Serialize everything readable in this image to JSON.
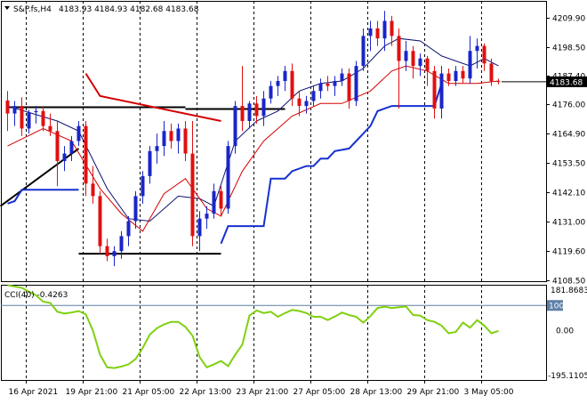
{
  "chart_data": [
    {
      "type": "candlestick",
      "symbol_label": "S&P.fs,H4",
      "ohlc_label": "4183.93 4184.93 4182.68 4183.68",
      "current_price": 4183.68,
      "current_price_label": "4183.68",
      "y_axis": {
        "ylim": [
          4104.0,
          4216.0
        ],
        "ticks": [
          "4209.90",
          "4198.50",
          "4187.40",
          "4176.00",
          "4164.90",
          "4153.50",
          "4142.10",
          "4131.00",
          "4119.60",
          "4108.50"
        ]
      },
      "x_axis": {
        "tick_labels": [
          "16 Apr 2021",
          "19 Apr 21:00",
          "21 Apr 05:00",
          "22 Apr 13:00",
          "23 Apr 21:00",
          "27 Apr 05:00",
          "28 Apr 13:00",
          "29 Apr 21:00",
          "3 May 05:00"
        ],
        "separators": [
          3,
          11,
          19,
          27,
          35,
          43,
          51,
          59,
          67
        ]
      },
      "colors": {
        "bull": "#1a25c8",
        "bear": "#e01010",
        "fast_ma": "#d40000",
        "slow_ma": "#0b1170",
        "trend_line": "#000000",
        "support_line": "#1630d0"
      },
      "candles": [
        [
          4176.2,
          4180.0,
          4164.0,
          4171.0
        ],
        [
          4171.0,
          4176.0,
          4166.0,
          4174.0
        ],
        [
          4174.0,
          4177.5,
          4162.0,
          4165.0
        ],
        [
          4165.0,
          4172.5,
          4163.0,
          4171.5
        ],
        [
          4171.5,
          4174.0,
          4167.0,
          4172.0
        ],
        [
          4172.0,
          4174.0,
          4164.0,
          4166.0
        ],
        [
          4166.0,
          4171.0,
          4162.0,
          4164.0
        ],
        [
          4164.0,
          4168.0,
          4142.0,
          4152.0
        ],
        [
          4152.0,
          4158.0,
          4148.0,
          4155.0
        ],
        [
          4155.0,
          4162.0,
          4152.0,
          4160.0
        ],
        [
          4160.0,
          4168.0,
          4158.0,
          4166.0
        ],
        [
          4166.0,
          4168.0,
          4138.0,
          4143.0
        ],
        [
          4143.0,
          4150.0,
          4135.0,
          4138.0
        ],
        [
          4138.0,
          4140.0,
          4115.0,
          4118.0
        ],
        [
          4118.0,
          4121.0,
          4112.0,
          4114.0
        ],
        [
          4114.0,
          4118.0,
          4110.0,
          4116.0
        ],
        [
          4116.0,
          4124.0,
          4113.0,
          4122.0
        ],
        [
          4122.0,
          4130.0,
          4118.0,
          4128.0
        ],
        [
          4128.0,
          4140.0,
          4125.0,
          4138.0
        ],
        [
          4138.0,
          4148.0,
          4135.0,
          4146.0
        ],
        [
          4146.0,
          4158.0,
          4143.0,
          4156.0
        ],
        [
          4156.0,
          4163.0,
          4151.0,
          4158.0
        ],
        [
          4158.0,
          4168.0,
          4154.0,
          4164.0
        ],
        [
          4164.0,
          4167.0,
          4157.0,
          4160.0
        ],
        [
          4160.0,
          4167.0,
          4155.0,
          4165.0
        ],
        [
          4165.0,
          4168.0,
          4152.0,
          4155.0
        ],
        [
          4155.0,
          4168.0,
          4118.0,
          4122.0
        ],
        [
          4122.0,
          4132.0,
          4116.0,
          4129.0
        ],
        [
          4129.0,
          4134.0,
          4125.0,
          4131.0
        ],
        [
          4131.0,
          4143.0,
          4129.0,
          4140.0
        ],
        [
          4140.0,
          4142.0,
          4130.0,
          4133.0
        ],
        [
          4133.0,
          4160.0,
          4131.0,
          4158.0
        ],
        [
          4158.0,
          4176.0,
          4155.0,
          4174.0
        ],
        [
          4174.0,
          4190.0,
          4164.0,
          4168.0
        ],
        [
          4168.0,
          4176.0,
          4165.0,
          4175.0
        ],
        [
          4175.0,
          4178.0,
          4167.0,
          4170.0
        ],
        [
          4170.0,
          4180.0,
          4166.0,
          4177.0
        ],
        [
          4177.0,
          4184.0,
          4175.0,
          4182.0
        ],
        [
          4182.0,
          4186.0,
          4178.0,
          4184.0
        ],
        [
          4184.0,
          4190.0,
          4180.0,
          4188.0
        ],
        [
          4188.0,
          4191.0,
          4174.0,
          4177.0
        ],
        [
          4177.0,
          4180.0,
          4170.0,
          4174.0
        ],
        [
          4174.0,
          4178.0,
          4171.0,
          4176.0
        ],
        [
          4176.0,
          4182.0,
          4174.0,
          4180.0
        ],
        [
          4180.0,
          4185.0,
          4177.0,
          4183.0
        ],
        [
          4183.0,
          4186.0,
          4180.0,
          4182.0
        ],
        [
          4182.0,
          4186.0,
          4178.0,
          4184.0
        ],
        [
          4184.0,
          4189.0,
          4182.0,
          4187.0
        ],
        [
          4187.0,
          4189.0,
          4173.0,
          4176.0
        ],
        [
          4176.0,
          4192.0,
          4174.0,
          4190.0
        ],
        [
          4190.0,
          4205.0,
          4188.0,
          4202.0
        ],
        [
          4202.0,
          4208.0,
          4196.0,
          4205.0
        ],
        [
          4205.0,
          4208.0,
          4198.0,
          4201.0
        ],
        [
          4201.0,
          4212.0,
          4196.0,
          4208.0
        ],
        [
          4208.0,
          4210.0,
          4198.0,
          4202.0
        ],
        [
          4202.0,
          4205.0,
          4173.0,
          4192.0
        ],
        [
          4192.0,
          4200.0,
          4188.0,
          4196.0
        ],
        [
          4196.0,
          4198.0,
          4185.0,
          4190.0
        ],
        [
          4190.0,
          4195.0,
          4186.0,
          4193.0
        ],
        [
          4193.0,
          4194.0,
          4182.0,
          4188.0
        ],
        [
          4188.0,
          4190.0,
          4169.0,
          4173.0
        ],
        [
          4173.0,
          4190.0,
          4169.0,
          4187.0
        ],
        [
          4187.0,
          4189.0,
          4182.0,
          4184.0
        ],
        [
          4184.0,
          4190.0,
          4182.0,
          4188.0
        ],
        [
          4188.0,
          4190.0,
          4183.0,
          4185.0
        ],
        [
          4185.0,
          4202.0,
          4183.0,
          4196.0
        ],
        [
          4196.0,
          4201.0,
          4189.0,
          4198.0
        ],
        [
          4198.0,
          4199.0,
          4188.0,
          4191.0
        ],
        [
          4191.0,
          4193.0,
          4182.0,
          4183.9
        ],
        [
          4183.93,
          4184.93,
          4182.68,
          4183.68
        ]
      ],
      "moving_averages": [
        {
          "color": "#0b1170",
          "points": [
            [
              0,
              4174
            ],
            [
              7,
              4168
            ],
            [
              10,
              4164
            ],
            [
              14,
              4141
            ],
            [
              17,
              4129
            ],
            [
              20,
              4128
            ],
            [
              24,
              4138
            ],
            [
              27,
              4137
            ],
            [
              29,
              4134
            ],
            [
              32,
              4160
            ],
            [
              35,
              4168
            ],
            [
              38,
              4172
            ],
            [
              41,
              4180
            ],
            [
              44,
              4183
            ],
            [
              47,
              4184
            ],
            [
              50,
              4189
            ],
            [
              53,
              4198
            ],
            [
              55,
              4201
            ],
            [
              58,
              4200
            ],
            [
              61,
              4194
            ],
            [
              65,
              4190
            ],
            [
              67,
              4193
            ],
            [
              69,
              4190
            ]
          ]
        },
        {
          "color": "#d40000",
          "points": [
            [
              0,
              4158
            ],
            [
              5,
              4165
            ],
            [
              9,
              4160
            ],
            [
              13,
              4141
            ],
            [
              16,
              4131
            ],
            [
              19,
              4124
            ],
            [
              22,
              4139
            ],
            [
              25,
              4145
            ],
            [
              28,
              4133
            ],
            [
              30,
              4130
            ],
            [
              33,
              4148
            ],
            [
              36,
              4160
            ],
            [
              40,
              4170
            ],
            [
              44,
              4175
            ],
            [
              47,
              4175
            ],
            [
              51,
              4180
            ],
            [
              54,
              4188
            ],
            [
              56,
              4190
            ],
            [
              59,
              4188
            ],
            [
              62,
              4183
            ],
            [
              66,
              4183
            ],
            [
              69,
              4184
            ]
          ]
        }
      ],
      "trend_lines": [
        {
          "color": "#000000",
          "points": [
            [
              0,
              4173.5
            ],
            [
              25,
              4173.5
            ]
          ]
        },
        {
          "color": "#000000",
          "points": [
            [
              25,
              4172.8
            ],
            [
              39,
              4172.8
            ]
          ]
        },
        {
          "color": "#000000",
          "points": [
            [
              -1,
              4134
            ],
            [
              10,
              4157
            ]
          ]
        },
        {
          "color": "#000000",
          "points": [
            [
              10,
              4115
            ],
            [
              30,
              4115
            ]
          ]
        },
        {
          "color": "#d40000",
          "points": [
            [
              11,
              4187
            ],
            [
              13,
              4178
            ],
            [
              30,
              4168
            ]
          ]
        },
        {
          "color": "#1630d0",
          "points": [
            [
              0,
              4135
            ],
            [
              1,
              4136
            ],
            [
              2,
              4140.5
            ],
            [
              10,
              4140.5
            ]
          ]
        },
        {
          "color": "#1630d0",
          "points": [
            [
              30,
              4119
            ],
            [
              31,
              4126
            ],
            [
              36,
              4126
            ],
            [
              37,
              4145
            ],
            [
              39,
              4145
            ],
            [
              40,
              4148
            ],
            [
              42,
              4150
            ],
            [
              43,
              4150
            ],
            [
              44,
              4153
            ],
            [
              45,
              4153
            ],
            [
              46,
              4156
            ],
            [
              48,
              4157
            ],
            [
              49,
              4160
            ],
            [
              50,
              4163
            ],
            [
              51,
              4166
            ],
            [
              52,
              4172
            ],
            [
              53,
              4173
            ],
            [
              54,
              4174
            ],
            [
              60,
              4174
            ],
            [
              61,
              4183
            ]
          ]
        }
      ]
    },
    {
      "type": "line",
      "indicator_label": "CCI(40) -0.4263",
      "ylim": [
        -195.1105,
        181.8683
      ],
      "level_100_label": "100",
      "top_label": "181.8683",
      "zero_label": "0.00",
      "bottom_label": "-195.1105",
      "color": "#80d010",
      "x": [
        0,
        2,
        4,
        5,
        6,
        7,
        8,
        9,
        10,
        11,
        12,
        13,
        14,
        15,
        16,
        17,
        18,
        19,
        20,
        21,
        22,
        23,
        24,
        25,
        26,
        27,
        28,
        29,
        30,
        31,
        32,
        33,
        34,
        35,
        36,
        37,
        38,
        39,
        40,
        41,
        42,
        43,
        44,
        45,
        46,
        47,
        48,
        49,
        50,
        51,
        52,
        53,
        54,
        55,
        56,
        57,
        58,
        59,
        60,
        61,
        62,
        63,
        64,
        65,
        66,
        67,
        68,
        69
      ],
      "values": [
        180,
        170,
        140,
        115,
        110,
        75,
        68,
        72,
        78,
        65,
        0,
        -95,
        -145,
        -148,
        -142,
        -133,
        -112,
        -68,
        -15,
        10,
        25,
        35,
        35,
        15,
        -20,
        -105,
        -145,
        -133,
        -120,
        -140,
        -95,
        -55,
        60,
        80,
        70,
        75,
        55,
        70,
        82,
        78,
        70,
        55,
        55,
        42,
        56,
        72,
        62,
        55,
        32,
        58,
        90,
        95,
        90,
        93,
        96,
        62,
        60,
        42,
        35,
        20,
        -10,
        -5,
        32,
        12,
        42,
        20,
        -10,
        -1
      ]
    }
  ]
}
